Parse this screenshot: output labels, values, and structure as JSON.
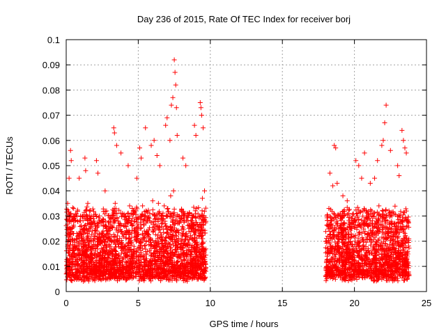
{
  "chart_data": {
    "type": "scatter",
    "title": "Day 236 of 2015, Rate Of TEC Index for receiver borj",
    "xlabel": "GPS time / hours",
    "ylabel": "ROTI / TECUs",
    "xlim": [
      0,
      25
    ],
    "ylim": [
      0,
      0.1
    ],
    "xticks": [
      0,
      5,
      10,
      15,
      20,
      25
    ],
    "yticks": [
      0,
      0.01,
      0.02,
      0.03,
      0.04,
      0.05,
      0.06,
      0.07,
      0.08,
      0.09,
      0.1
    ],
    "xtick_labels": [
      "0",
      "5",
      "10",
      "15",
      "20",
      "25"
    ],
    "ytick_labels": [
      "0",
      "0.01",
      "0.02",
      "0.03",
      "0.04",
      "0.05",
      "0.06",
      "0.07",
      "0.08",
      "0.09",
      "0.1"
    ],
    "grid": true,
    "marker": "+",
    "color": "#ff0000",
    "series": [
      {
        "x": [
          0.1,
          0.2,
          0.3,
          0.35,
          0.5,
          0.9,
          1.3,
          1.35,
          1.5,
          2.1,
          2.2,
          2.7,
          3.3,
          3.35,
          3.5,
          3.8,
          4.3,
          4.9,
          5.1,
          5.2,
          5.5,
          5.9,
          6.1,
          6.3,
          6.5,
          6.9,
          7.0,
          7.2,
          7.3,
          7.4,
          7.5,
          7.55,
          7.6,
          7.65,
          7.7,
          8.1,
          8.3,
          8.9,
          9.0,
          9.3,
          9.35,
          9.4,
          9.5,
          9.6,
          18.1,
          18.3,
          18.5,
          18.6,
          18.7,
          18.8,
          19.2,
          19.5,
          20.1,
          20.3,
          20.5,
          20.7,
          21.1,
          21.4,
          21.6,
          21.9,
          22.0,
          22.1,
          22.2,
          22.5,
          23.0,
          23.1,
          23.3,
          23.4,
          23.5,
          23.6
        ],
        "y": [
          0.035,
          0.045,
          0.056,
          0.052,
          0.03,
          0.045,
          0.053,
          0.048,
          0.035,
          0.052,
          0.047,
          0.04,
          0.065,
          0.063,
          0.058,
          0.055,
          0.05,
          0.045,
          0.057,
          0.053,
          0.065,
          0.058,
          0.06,
          0.054,
          0.05,
          0.066,
          0.069,
          0.06,
          0.074,
          0.077,
          0.092,
          0.087,
          0.082,
          0.073,
          0.062,
          0.053,
          0.05,
          0.066,
          0.062,
          0.075,
          0.073,
          0.07,
          0.065,
          0.04,
          0.03,
          0.047,
          0.042,
          0.058,
          0.057,
          0.043,
          0.038,
          0.036,
          0.052,
          0.05,
          0.045,
          0.055,
          0.043,
          0.045,
          0.052,
          0.058,
          0.06,
          0.067,
          0.074,
          0.056,
          0.05,
          0.046,
          0.064,
          0.06,
          0.057,
          0.055
        ]
      },
      {
        "x": [
          0.15,
          0.4,
          0.6,
          0.8,
          1.0,
          1.2,
          1.4,
          1.6,
          1.8,
          2.0,
          2.3,
          2.5,
          2.8,
          3.0,
          3.2,
          3.4,
          3.6,
          3.9,
          4.1,
          4.4,
          4.6,
          4.8,
          5.0,
          5.3,
          5.6,
          5.8,
          6.0,
          6.2,
          6.4,
          6.6,
          6.8,
          7.05,
          7.25,
          7.45,
          7.8,
          8.0,
          8.2,
          8.4,
          8.6,
          8.8,
          9.05,
          9.25,
          9.45,
          18.05,
          18.2,
          18.4,
          18.9,
          19.1,
          19.3,
          19.6,
          19.8,
          20.0,
          20.2,
          20.4,
          20.6,
          20.8,
          21.0,
          21.2,
          21.5,
          21.7,
          21.8,
          22.3,
          22.4,
          22.6,
          22.8,
          23.2,
          23.7
        ],
        "y": [
          0.02,
          0.025,
          0.028,
          0.022,
          0.03,
          0.02,
          0.032,
          0.025,
          0.027,
          0.022,
          0.03,
          0.028,
          0.032,
          0.025,
          0.03,
          0.035,
          0.028,
          0.031,
          0.03,
          0.034,
          0.029,
          0.032,
          0.026,
          0.034,
          0.028,
          0.031,
          0.036,
          0.029,
          0.035,
          0.03,
          0.034,
          0.033,
          0.038,
          0.04,
          0.03,
          0.032,
          0.028,
          0.031,
          0.026,
          0.03,
          0.033,
          0.03,
          0.037,
          0.02,
          0.026,
          0.028,
          0.025,
          0.029,
          0.027,
          0.031,
          0.025,
          0.028,
          0.03,
          0.026,
          0.032,
          0.027,
          0.03,
          0.032,
          0.029,
          0.034,
          0.03,
          0.028,
          0.032,
          0.03,
          0.027,
          0.03,
          0.028
        ]
      }
    ]
  }
}
